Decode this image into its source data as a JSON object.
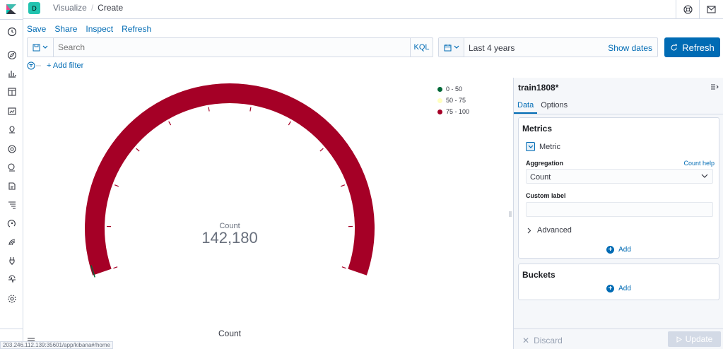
{
  "header": {
    "space_initial": "D",
    "breadcrumbs": [
      "Visualize",
      "Create"
    ],
    "breadcrumb_sep": "/"
  },
  "nav_icons": [
    "clock-icon",
    "discover-icon",
    "visualize-icon",
    "dashboard-icon",
    "canvas-icon",
    "maps-icon",
    "ml-icon",
    "infrastructure-icon",
    "logs-icon",
    "apm-icon",
    "uptime-icon",
    "siem-icon",
    "dev-tools-icon",
    "monitoring-icon",
    "management-icon"
  ],
  "top_menu": {
    "save": "Save",
    "share": "Share",
    "inspect": "Inspect",
    "refresh": "Refresh"
  },
  "query": {
    "placeholder": "Search",
    "language": "KQL"
  },
  "time": {
    "range": "Last 4 years",
    "show_dates": "Show dates"
  },
  "refresh_button": "Refresh",
  "filter": {
    "add_label": "+ Add filter"
  },
  "chart_data": {
    "type": "gauge",
    "metric_label": "Count",
    "value": "142,180",
    "raw_value": 142180,
    "caption": "Count",
    "ranges": [
      {
        "label": "0 - 50",
        "from": 0,
        "to": 50,
        "color": "#006837"
      },
      {
        "label": "50 - 75",
        "from": 50,
        "to": 75,
        "color": "#ffffbf"
      },
      {
        "label": "75 - 100",
        "from": 75,
        "to": 100,
        "color": "#a50026"
      }
    ],
    "arc_color": "#a50026",
    "legend_position": "top-right"
  },
  "sidebar": {
    "title": "train1808*",
    "tabs": [
      "Data",
      "Options"
    ],
    "metrics": {
      "title": "Metrics",
      "metric_label": "Metric",
      "aggregation_label": "Aggregation",
      "aggregation_help": "Count help",
      "aggregation_value": "Count",
      "custom_label_label": "Custom label",
      "custom_label_value": "",
      "advanced": "Advanced",
      "add": "Add"
    },
    "buckets": {
      "title": "Buckets",
      "add": "Add"
    },
    "discard": "Discard",
    "update": "Update"
  },
  "status_url": "203.246.112.139:35601/app/kibana#/home"
}
